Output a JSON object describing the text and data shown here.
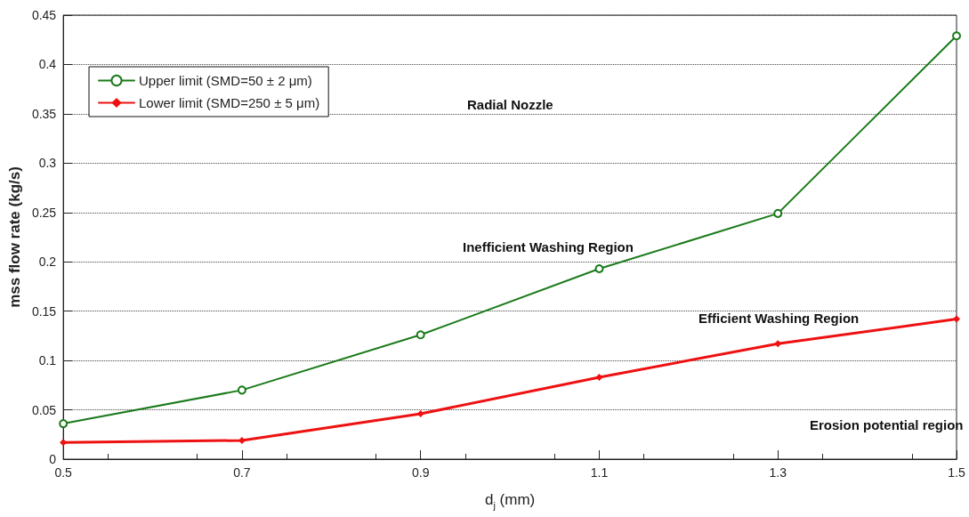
{
  "chart_data": {
    "type": "line",
    "xlabel": "d$_{j}$ (mm)",
    "ylabel": "mss flow rate (kg/s)",
    "x": [
      0.5,
      0.7,
      0.9,
      1.1,
      1.3,
      1.5
    ],
    "series": [
      {
        "name": "Upper limit (SMD=50 ± 2 μm)",
        "color": "#1a7a1a",
        "marker": "circle",
        "values": [
          0.036,
          0.07,
          0.126,
          0.193,
          0.249,
          0.429
        ]
      },
      {
        "name": "Lower limit (SMD=250 ± 5 μm)",
        "color": "#ee1111",
        "marker": "diamond",
        "values": [
          0.017,
          0.019,
          0.046,
          0.083,
          0.117,
          0.142
        ]
      }
    ],
    "xlim": [
      0.5,
      1.5
    ],
    "xticks": [
      0.5,
      0.7,
      0.9,
      1.1,
      1.3,
      1.5
    ],
    "ylim": [
      0,
      0.45
    ],
    "yticks": [
      0,
      0.05,
      0.1,
      0.15,
      0.2,
      0.25,
      0.3,
      0.35,
      0.4,
      0.45
    ],
    "grid": "y",
    "legend": "top left",
    "line_style": "solid",
    "annotations": [
      "Radial Nozzle",
      "Inefficient Washing Region",
      "Efficient Washing Region",
      "Erosion potential region"
    ]
  }
}
